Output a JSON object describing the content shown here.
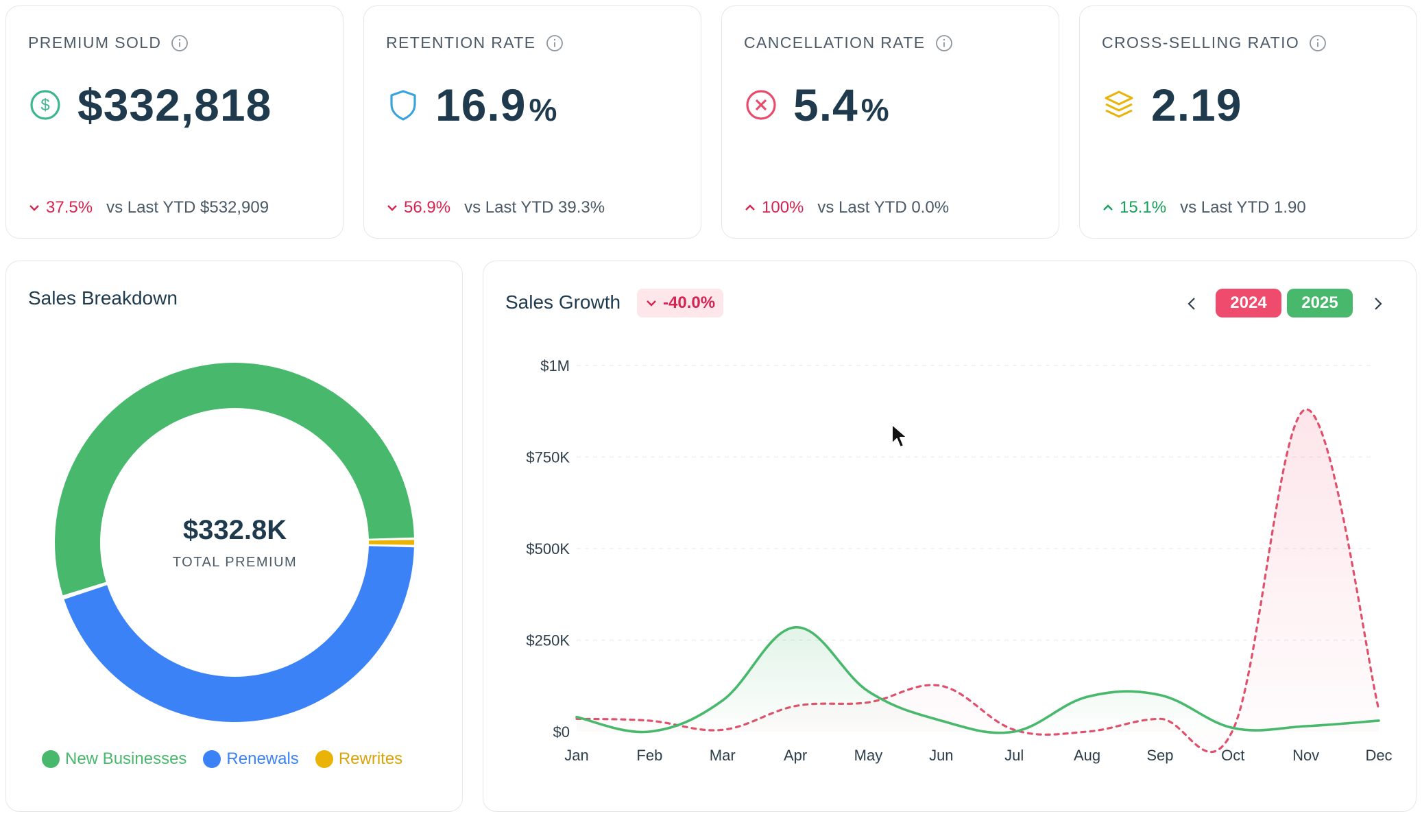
{
  "kpis": [
    {
      "title": "PREMIUM SOLD",
      "icon": "dollar-circle-icon",
      "value": "$332,818",
      "suffix": "",
      "change": "37.5%",
      "direction": "down",
      "compare": "vs Last YTD $532,909"
    },
    {
      "title": "RETENTION RATE",
      "icon": "shield-icon",
      "value": "16.9",
      "suffix": "%",
      "change": "56.9%",
      "direction": "down",
      "compare": "vs Last YTD 39.3%"
    },
    {
      "title": "CANCELLATION RATE",
      "icon": "x-circle-icon",
      "value": "5.4",
      "suffix": "%",
      "change": "100%",
      "direction": "up-bad",
      "compare": "vs Last YTD 0.0%"
    },
    {
      "title": "CROSS-SELLING RATIO",
      "icon": "layers-icon",
      "value": "2.19",
      "suffix": "",
      "change": "15.1%",
      "direction": "up",
      "compare": "vs Last YTD 1.90"
    }
  ],
  "breakdown": {
    "title": "Sales Breakdown",
    "total_value": "$332.8K",
    "total_label": "TOTAL PREMIUM",
    "legend": [
      {
        "label": "New Businesses",
        "color": "#48b86c"
      },
      {
        "label": "Renewals",
        "color": "#3b82f6"
      },
      {
        "label": "Rewrites",
        "color": "#eab308"
      }
    ]
  },
  "growth": {
    "title": "Sales Growth",
    "badge": "-40.0%",
    "years": [
      {
        "label": "2024",
        "color": "#ef4b6c"
      },
      {
        "label": "2025",
        "color": "#48b86c"
      }
    ]
  },
  "chart_data": [
    {
      "type": "pie",
      "title": "Sales Breakdown",
      "categories": [
        "New Businesses",
        "Renewals",
        "Rewrites"
      ],
      "values": [
        0.547,
        0.448,
        0.005
      ],
      "colors": [
        "#48b86c",
        "#3b82f6",
        "#eab308"
      ],
      "legend": "bottom"
    },
    {
      "type": "line",
      "title": "Sales Growth",
      "categories": [
        "Jan",
        "Feb",
        "Mar",
        "Apr",
        "May",
        "Jun",
        "Jul",
        "Aug",
        "Sep",
        "Oct",
        "Nov",
        "Dec"
      ],
      "y_ticks": [
        "$0",
        "$250K",
        "$500K",
        "$750K",
        "$1M"
      ],
      "ylim": [
        0,
        1000000
      ],
      "series": [
        {
          "name": "2025",
          "color": "#48b86c",
          "style": "solid",
          "values": [
            40000,
            0,
            85000,
            285000,
            110000,
            30000,
            0,
            95000,
            100000,
            10000,
            15000,
            30000
          ]
        },
        {
          "name": "2024",
          "color": "#e0506c",
          "style": "dashed",
          "values": [
            35000,
            30000,
            5000,
            70000,
            80000,
            125000,
            5000,
            0,
            35000,
            5000,
            880000,
            60000
          ]
        }
      ],
      "grid": true
    }
  ]
}
